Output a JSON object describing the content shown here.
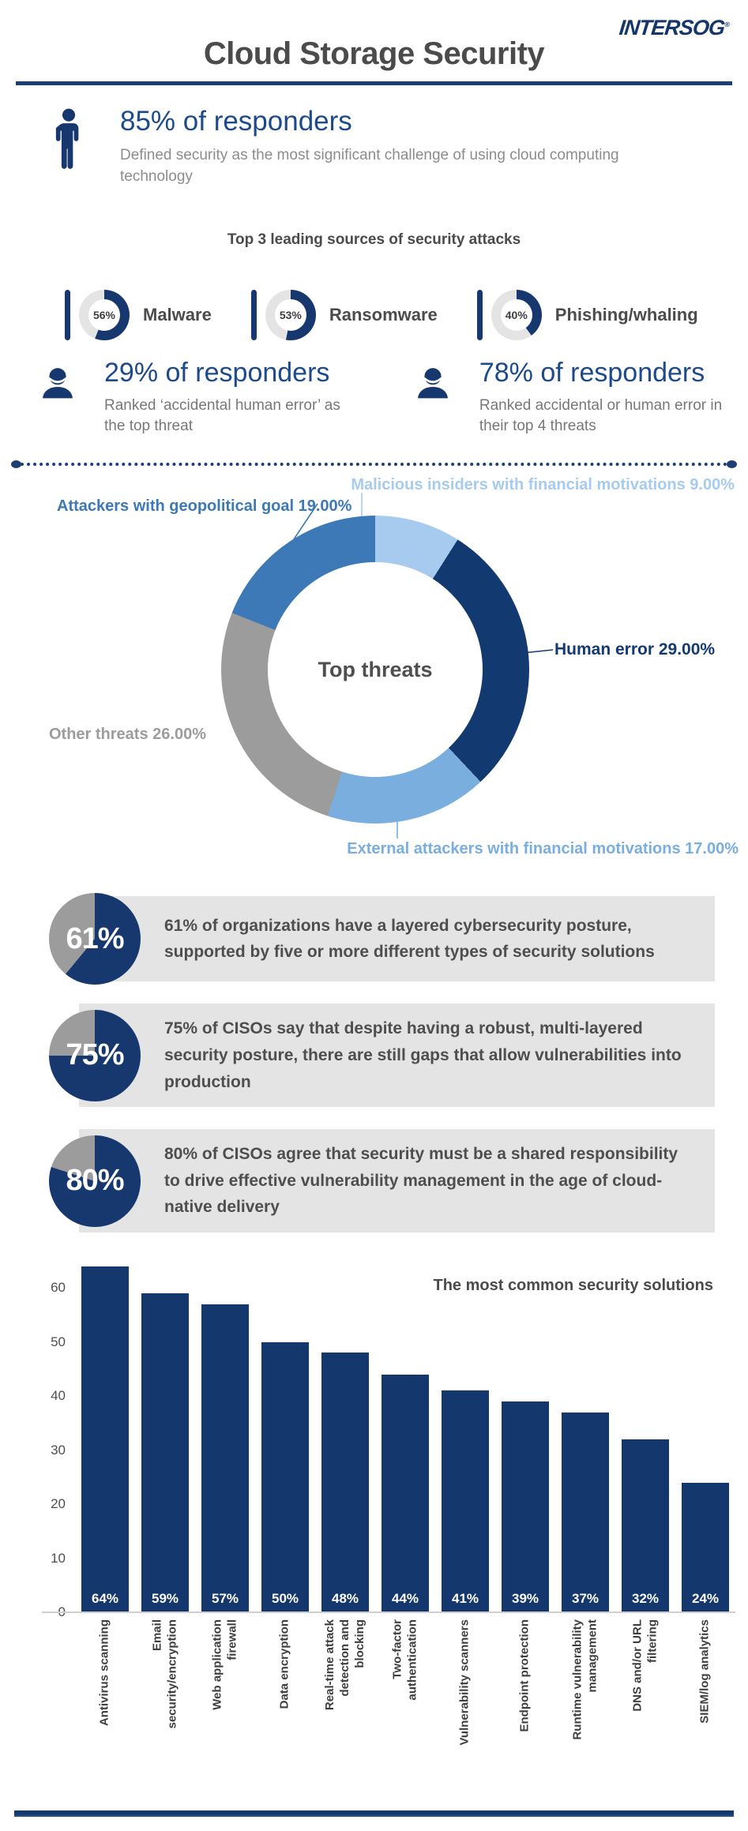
{
  "colors": {
    "navy": "#16386e",
    "heading_navy": "#1c4a8c",
    "rule_navy": "#1b3f74",
    "title_gray": "#4b4b4b",
    "body_gray": "#8c8c8c",
    "caption_gray": "#787878",
    "ring_gray": "#e4e4e4",
    "panel_gray": "#e4e4e4",
    "pie_gray": "#9c9c9c",
    "tick_gray": "#4f4f4f",
    "footer_navy": "#1b4379",
    "bar_navy": "#14386d"
  },
  "brand": {
    "logo_text": "INTERSOG",
    "registered_mark": "®"
  },
  "header": {
    "title": "Cloud Storage Security"
  },
  "intro_stat": {
    "headline": "85% of responders",
    "description": "Defined security as the most significant challenge of using cloud computing technology"
  },
  "attack_sources": {
    "heading": "Top 3 leading sources of security attacks",
    "items": [
      {
        "percent": 56,
        "display": "56%",
        "label": "Malware"
      },
      {
        "percent": 53,
        "display": "53%",
        "label": "Ransomware"
      },
      {
        "percent": 40,
        "display": "40%",
        "label": "Phishing/whaling"
      }
    ]
  },
  "responder_stats": [
    {
      "headline": "29% of responders",
      "description": "Ranked ‘accidental human error’ as the top threat"
    },
    {
      "headline": "78% of responders",
      "description": "Ranked accidental or human error in their top 4 threats"
    }
  ],
  "chart_data": [
    {
      "type": "pie",
      "subtype": "donut",
      "center_label": "Top threats",
      "start_angle": "12 o'clock, clockwise",
      "inner_radius_ratio": 0.7,
      "legend_position": "callout-labels",
      "slices": [
        {
          "label": "Malicious insiders with financial motivations",
          "value": 9.0,
          "display": "Malicious insiders with financial motivations 9.00%",
          "color": "#a6cbee"
        },
        {
          "label": "Human error",
          "value": 29.0,
          "display": "Human error 29.00%",
          "color": "#133a70"
        },
        {
          "label": "External attackers with financial motivations",
          "value": 17.0,
          "display": "External attackers with financial motivations 17.00%",
          "color": "#79aede"
        },
        {
          "label": "Other threats",
          "value": 26.0,
          "display": "Other threats 26.00%",
          "color": "#9c9c9c"
        },
        {
          "label": "Attackers with geopolitical goal",
          "value": 19.0,
          "display": "Attackers with geopolitical goal 19.00%",
          "color": "#3c79b6"
        }
      ]
    },
    {
      "type": "bar",
      "title": "The most common security solutions",
      "categories": [
        "Antivirus scanning",
        "Email security/encryption",
        "Web application firewall",
        "Data encryption",
        "Real-time attack detection and blocking",
        "Two-factor authentication",
        "Vulnerability scanners",
        "Endpoint protection",
        "Runtime vulnerability management",
        "DNS and/or URL filtering",
        "SIEM/log analytics"
      ],
      "categories_display": [
        "Antivirus scanning",
        "Email\nsecurity/encryption",
        "Web application\nfirewall",
        "Data encryption",
        "Real-time attack\ndetection and\nblocking",
        "Two-factor\nauthentication",
        "Vulnerability scanners",
        "Endpoint protection",
        "Runtime vulnerability\nmanagement",
        "DNS and/or URL\nfiltering",
        "SIEM/log analytics"
      ],
      "values": [
        64,
        59,
        57,
        50,
        48,
        44,
        41,
        39,
        37,
        32,
        24
      ],
      "value_labels": [
        "64%",
        "59%",
        "57%",
        "50%",
        "48%",
        "44%",
        "41%",
        "39%",
        "37%",
        "32%",
        "24%"
      ],
      "y_ticks": [
        0,
        10,
        20,
        30,
        40,
        50,
        60
      ],
      "ylim": [
        0,
        65
      ],
      "grid": false,
      "bar_color": "#14386d",
      "value_label_color": "#ffffff"
    }
  ],
  "ciso_stats": [
    {
      "percent": 61,
      "display": "61%",
      "text": "61% of organizations have a layered cybersecurity posture, supported by five or more different types of security solutions"
    },
    {
      "percent": 75,
      "display": "75%",
      "text": "75% of CISOs say that despite having a robust, multi-layered security posture, there are still gaps that allow vulnerabilities into production"
    },
    {
      "percent": 80,
      "display": "80%",
      "text": "80% of CISOs agree that security must be a shared responsibility to drive effective vulnerability management in the age of cloud-native delivery"
    }
  ]
}
